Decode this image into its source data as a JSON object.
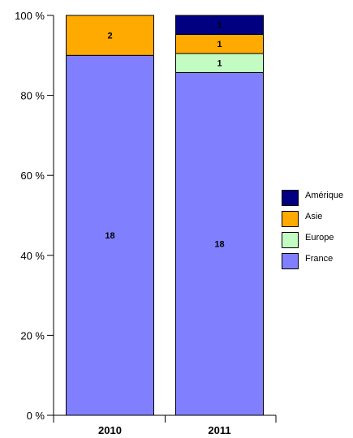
{
  "chart_data": {
    "type": "bar",
    "stacked": true,
    "normalized": true,
    "categories": [
      "2010",
      "2011"
    ],
    "series": [
      {
        "name": "France",
        "values": [
          18,
          18
        ],
        "labels": [
          "18",
          "18"
        ],
        "color": "#8080ff"
      },
      {
        "name": "Europe",
        "values": [
          0,
          1
        ],
        "labels": [
          "",
          "1"
        ],
        "color": "#c3fcc3"
      },
      {
        "name": "Asie",
        "values": [
          2,
          1
        ],
        "labels": [
          "2",
          "1"
        ],
        "color": "#ffaa00"
      },
      {
        "name": "Amérique",
        "values": [
          0,
          1
        ],
        "labels": [
          "",
          "1"
        ],
        "color": "#000080"
      }
    ],
    "yticks": [
      "0 %",
      "20 %",
      "40 %",
      "60 %",
      "80 %",
      "100 %"
    ],
    "ylim": [
      0,
      100
    ],
    "legend_order": [
      "Amérique",
      "Asie",
      "Europe",
      "France"
    ],
    "legend_position": "right",
    "grid": false
  }
}
